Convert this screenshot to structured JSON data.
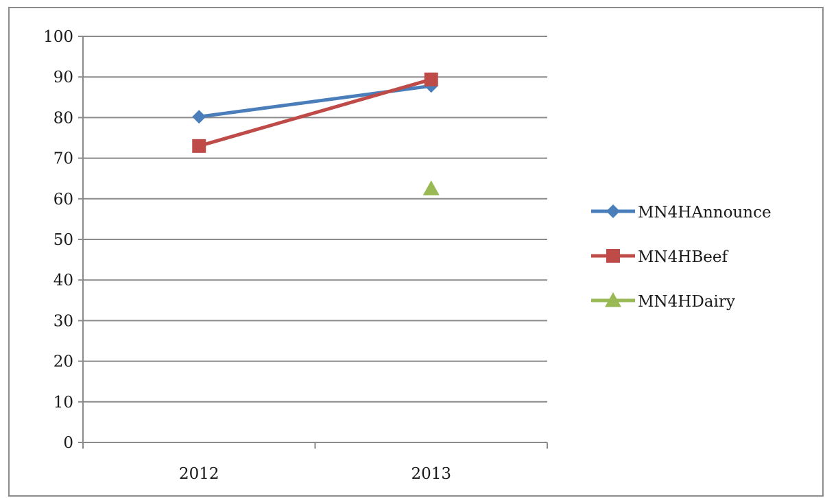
{
  "chart_data": {
    "type": "line",
    "categories": [
      "2012",
      "2013"
    ],
    "series": [
      {
        "name": "MN4HAnnounce",
        "values": [
          80.2,
          87.8
        ],
        "color": "#4a7ebb",
        "marker": "diamond"
      },
      {
        "name": "MN4HBeef",
        "values": [
          73.0,
          89.4
        ],
        "color": "#be4b48",
        "marker": "square"
      },
      {
        "name": "MN4HDairy",
        "values": [
          null,
          62.5
        ],
        "color": "#98b954",
        "marker": "triangle"
      }
    ],
    "ylim": [
      0,
      100
    ],
    "yticks": [
      0,
      10,
      20,
      30,
      40,
      50,
      60,
      70,
      80,
      90,
      100
    ],
    "grid": true,
    "legend_position": "right"
  }
}
